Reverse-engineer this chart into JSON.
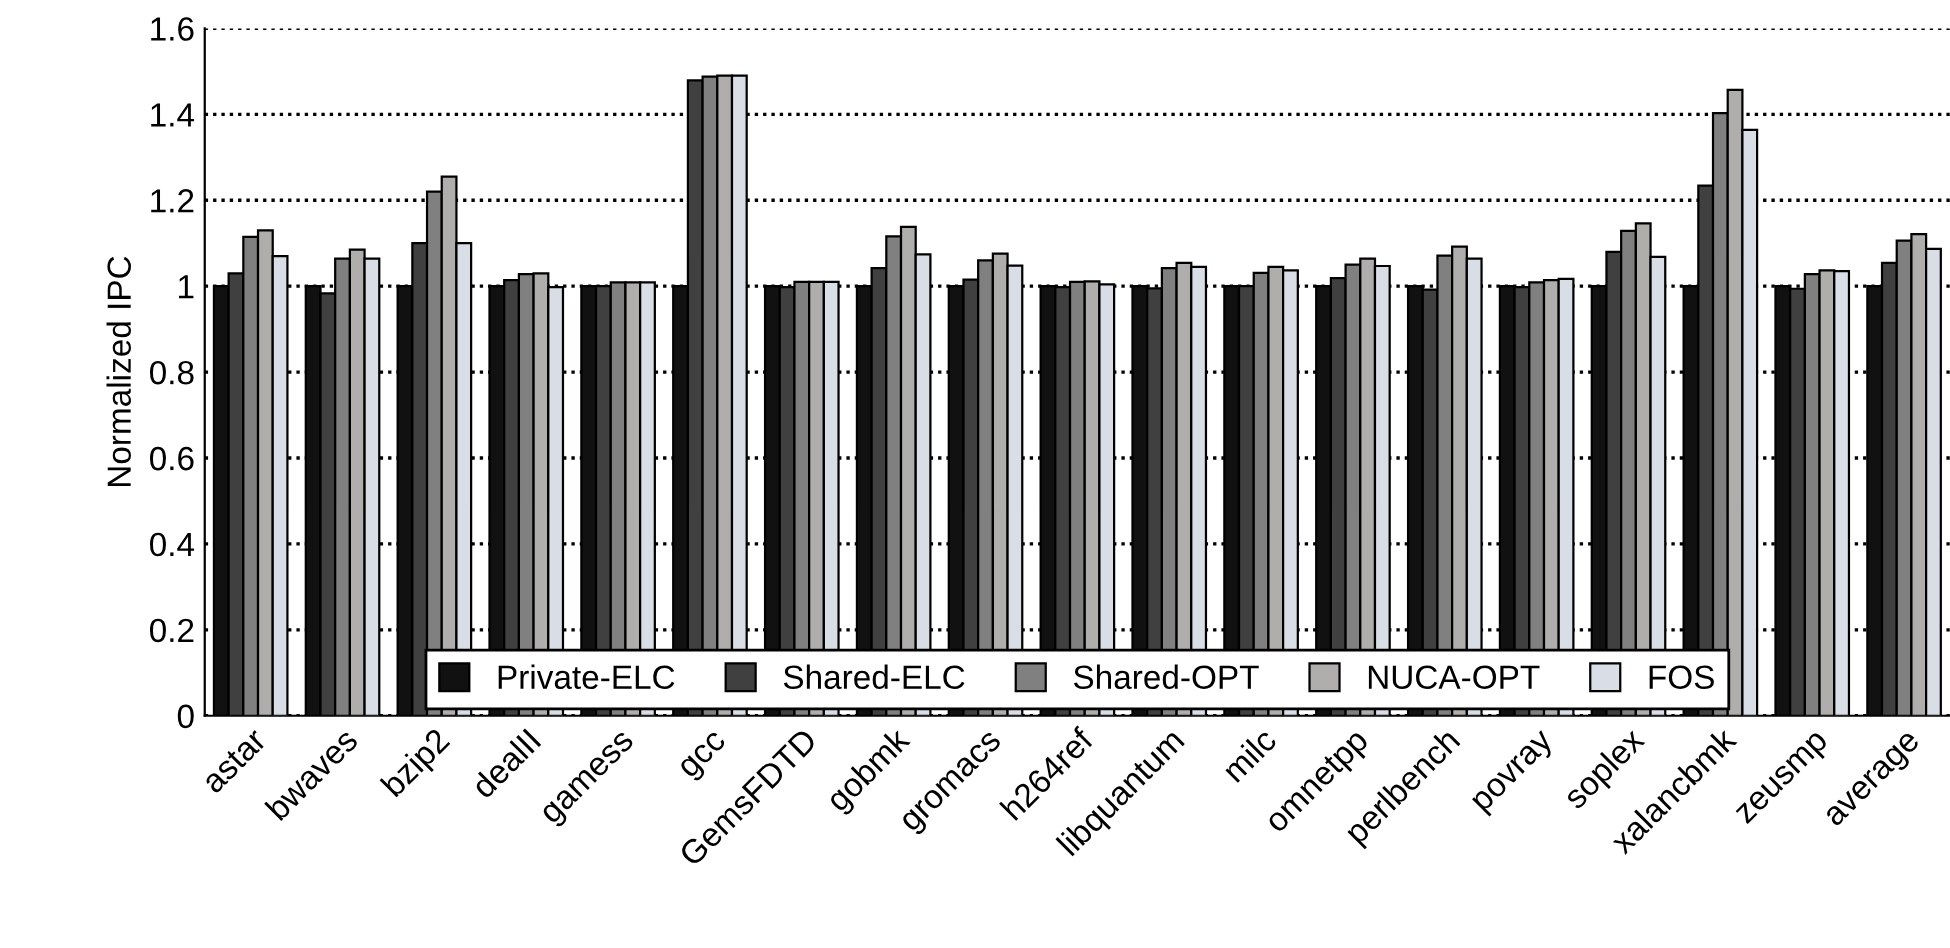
{
  "chart_data": {
    "type": "bar",
    "ylabel": "Normalized IPC",
    "categories": [
      "astar",
      "bwaves",
      "bzip2",
      "dealII",
      "gamess",
      "gcc",
      "GemsFDTD",
      "gobmk",
      "gromacs",
      "h264ref",
      "libquantum",
      "milc",
      "omnetpp",
      "perlbench",
      "povray",
      "soplex",
      "xalancbmk",
      "zeusmp",
      "average"
    ],
    "series": [
      {
        "name": "Private-ELC",
        "color": "#111111",
        "values": [
          1,
          1,
          1,
          1,
          1,
          1,
          1,
          1,
          1,
          1,
          1,
          1,
          1,
          1,
          1,
          1,
          1,
          1,
          1
        ]
      },
      {
        "name": "Shared-ELC",
        "color": "#404040",
        "values": [
          1.03,
          0.983,
          1.1,
          1.014,
          1.0,
          1.479,
          0.998,
          1.042,
          1.015,
          0.998,
          0.995,
          1.0,
          1.019,
          0.992,
          0.998,
          1.08,
          1.234,
          0.994,
          1.054
        ]
      },
      {
        "name": "Shared-OPT",
        "color": "#808080",
        "values": [
          1.115,
          1.064,
          1.22,
          1.028,
          1.009,
          1.488,
          1.01,
          1.116,
          1.06,
          1.01,
          1.042,
          1.031,
          1.05,
          1.071,
          1.009,
          1.129,
          1.403,
          1.028,
          1.106
        ]
      },
      {
        "name": "NUCA-OPT",
        "color": "#b0aeac",
        "values": [
          1.13,
          1.085,
          1.255,
          1.03,
          1.009,
          1.49,
          1.01,
          1.138,
          1.076,
          1.011,
          1.054,
          1.045,
          1.064,
          1.092,
          1.014,
          1.146,
          1.457,
          1.037,
          1.121
        ]
      },
      {
        "name": "FOS",
        "color": "#d9dde6",
        "values": [
          1.07,
          1.064,
          1.1,
          0.998,
          1.009,
          1.49,
          1.01,
          1.074,
          1.048,
          1.004,
          1.045,
          1.037,
          1.047,
          1.064,
          1.017,
          1.068,
          1.364,
          1.035,
          1.087
        ]
      }
    ],
    "ylim": [
      0,
      1.6
    ],
    "yticks": [
      0,
      {
        "value": 0.2,
        "label": "0.2"
      },
      {
        "value": 0.4,
        "label": "0.4"
      },
      {
        "value": 0.6,
        "label": "0.6"
      },
      {
        "value": 0.8,
        "label": "0.8"
      },
      1,
      {
        "value": 1.2,
        "label": "1.2"
      },
      {
        "value": 1.4,
        "label": "1.4"
      },
      {
        "value": 1.6,
        "label": "1.6"
      }
    ],
    "grid": "y",
    "legend": "bottom"
  }
}
